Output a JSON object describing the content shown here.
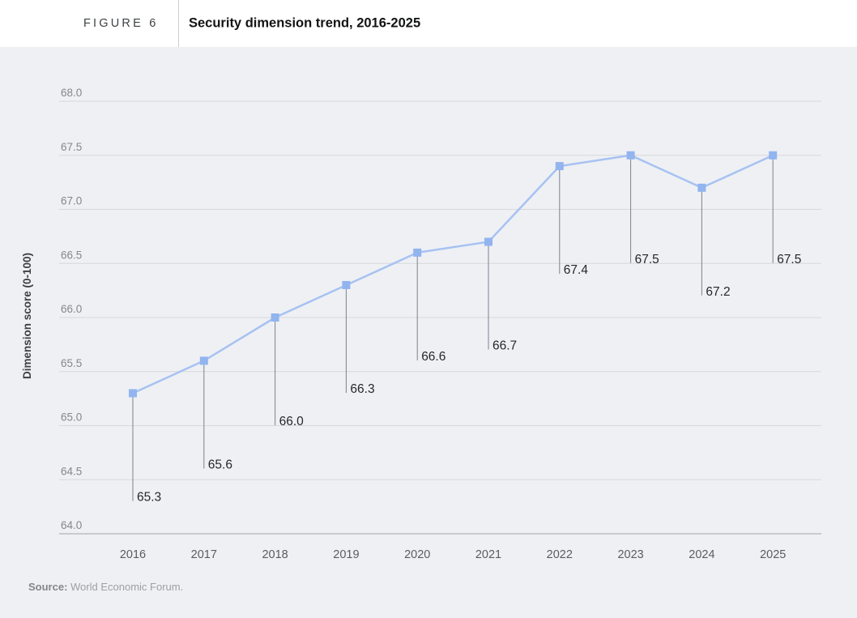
{
  "header": {
    "figure_label": "FIGURE 6",
    "title": "Security dimension trend, 2016-2025"
  },
  "chart_data": {
    "type": "line",
    "title": "Security dimension trend, 2016-2025",
    "x": [
      "2016",
      "2017",
      "2018",
      "2019",
      "2020",
      "2021",
      "2022",
      "2023",
      "2024",
      "2025"
    ],
    "values": [
      65.3,
      65.6,
      66.0,
      66.3,
      66.6,
      66.7,
      67.4,
      67.5,
      67.2,
      67.5
    ],
    "data_labels": [
      "65.3",
      "65.6",
      "66.0",
      "66.3",
      "66.6",
      "66.7",
      "67.4",
      "67.5",
      "67.2",
      "67.5"
    ],
    "xlabel": "",
    "ylabel": "Dimension score (0-100)",
    "ylim": [
      64.0,
      68.0
    ],
    "ytick_step": 0.5,
    "ytick_labels": [
      "64.0",
      "64.5",
      "65.0",
      "65.5",
      "66.0",
      "66.5",
      "67.0",
      "67.5",
      "68.0"
    ],
    "grid": true,
    "legend": "none",
    "marker": "square",
    "colors": {
      "line": "#a6c2f2",
      "marker": "#92b4ef",
      "leader_line": "#7c828c",
      "chart_background": "#eff0f4",
      "gridline": "#d7d8dc",
      "axis_line": "#a2a4a8",
      "data_label": "#25272a",
      "tick_label": "#84878c",
      "year_label": "#595c61",
      "ylabel_color": "#3c3f44"
    }
  },
  "source": {
    "label": "Source:",
    "text": "World Economic Forum."
  }
}
